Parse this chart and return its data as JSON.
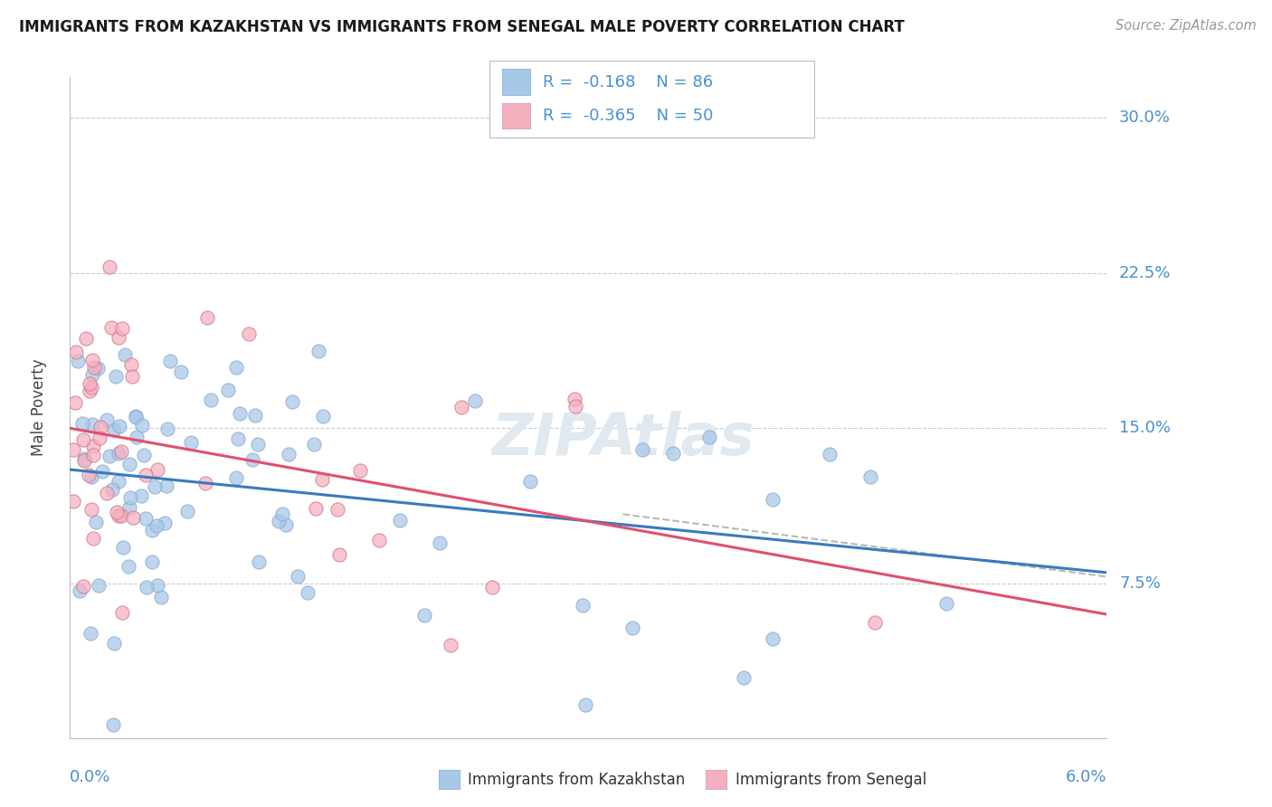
{
  "title": "IMMIGRANTS FROM KAZAKHSTAN VS IMMIGRANTS FROM SENEGAL MALE POVERTY CORRELATION CHART",
  "source": "Source: ZipAtlas.com",
  "ylabel_label": "Male Poverty",
  "legend_label1": "Immigrants from Kazakhstan",
  "legend_label2": "Immigrants from Senegal",
  "R1": -0.168,
  "N1": 86,
  "R2": -0.365,
  "N2": 50,
  "color1": "#a8c8e8",
  "color2": "#f5b0c0",
  "trendline1_color": "#3a7abf",
  "trendline2_color": "#e05070",
  "dashed_color": "#b8b8b8",
  "background": "#ffffff",
  "grid_color": "#cccccc",
  "axis_label_color": "#4a90d0",
  "title_color": "#1a1a1a",
  "ylabel_ticks": [
    7.5,
    15.0,
    22.5,
    30.0
  ],
  "xmin": 0.0,
  "xmax": 6.0,
  "ymin": 0.0,
  "ymax": 32.0,
  "legend_text_color": "#4a90d0",
  "watermark_color": "#e0e8f0"
}
